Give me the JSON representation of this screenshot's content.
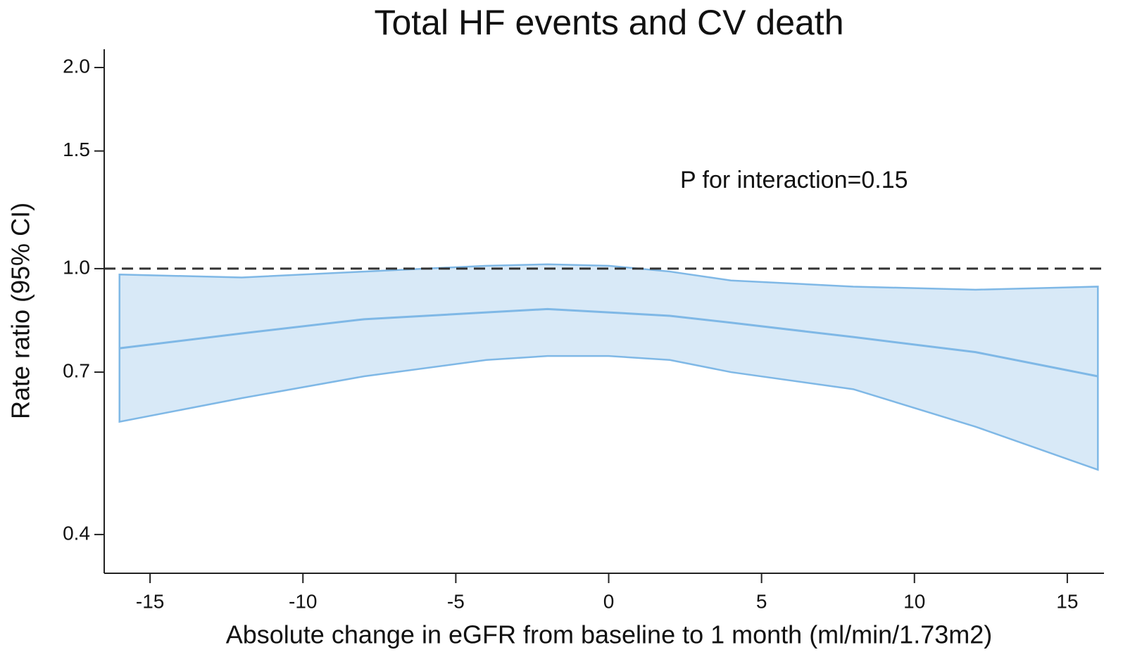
{
  "chart_data": {
    "type": "line",
    "title": "Total HF events and CV death",
    "xlabel": "Absolute change in eGFR from baseline to 1 month (ml/min/1.73m2)",
    "ylabel": "Rate ratio (95% CI)",
    "annotation": "P for interaction=0.15",
    "x": [
      -16,
      -12,
      -8,
      -4,
      -2,
      0,
      2,
      4,
      8,
      12,
      16
    ],
    "values": [
      0.76,
      0.8,
      0.84,
      0.86,
      0.87,
      0.86,
      0.85,
      0.83,
      0.79,
      0.75,
      0.69
    ],
    "upper": [
      0.98,
      0.97,
      0.99,
      1.01,
      1.015,
      1.01,
      0.99,
      0.96,
      0.94,
      0.93,
      0.94
    ],
    "lower": [
      0.59,
      0.64,
      0.69,
      0.73,
      0.74,
      0.74,
      0.73,
      0.7,
      0.66,
      0.58,
      0.5
    ],
    "color": "#7fb8e6",
    "band_color": "#d8e9f7",
    "reference_line": 1,
    "ylog": true,
    "xlim": [
      -16.5,
      16.2
    ],
    "ylim": [
      0.35,
      2.13
    ],
    "xticks": [
      -15,
      -10,
      -5,
      0,
      5,
      10,
      15
    ],
    "yticks": [
      0.4,
      0.7,
      {
        "value": 1,
        "label": "1.0"
      },
      {
        "value": 1.5,
        "label": "1.5"
      },
      {
        "value": 2,
        "label": "2.0"
      }
    ]
  }
}
